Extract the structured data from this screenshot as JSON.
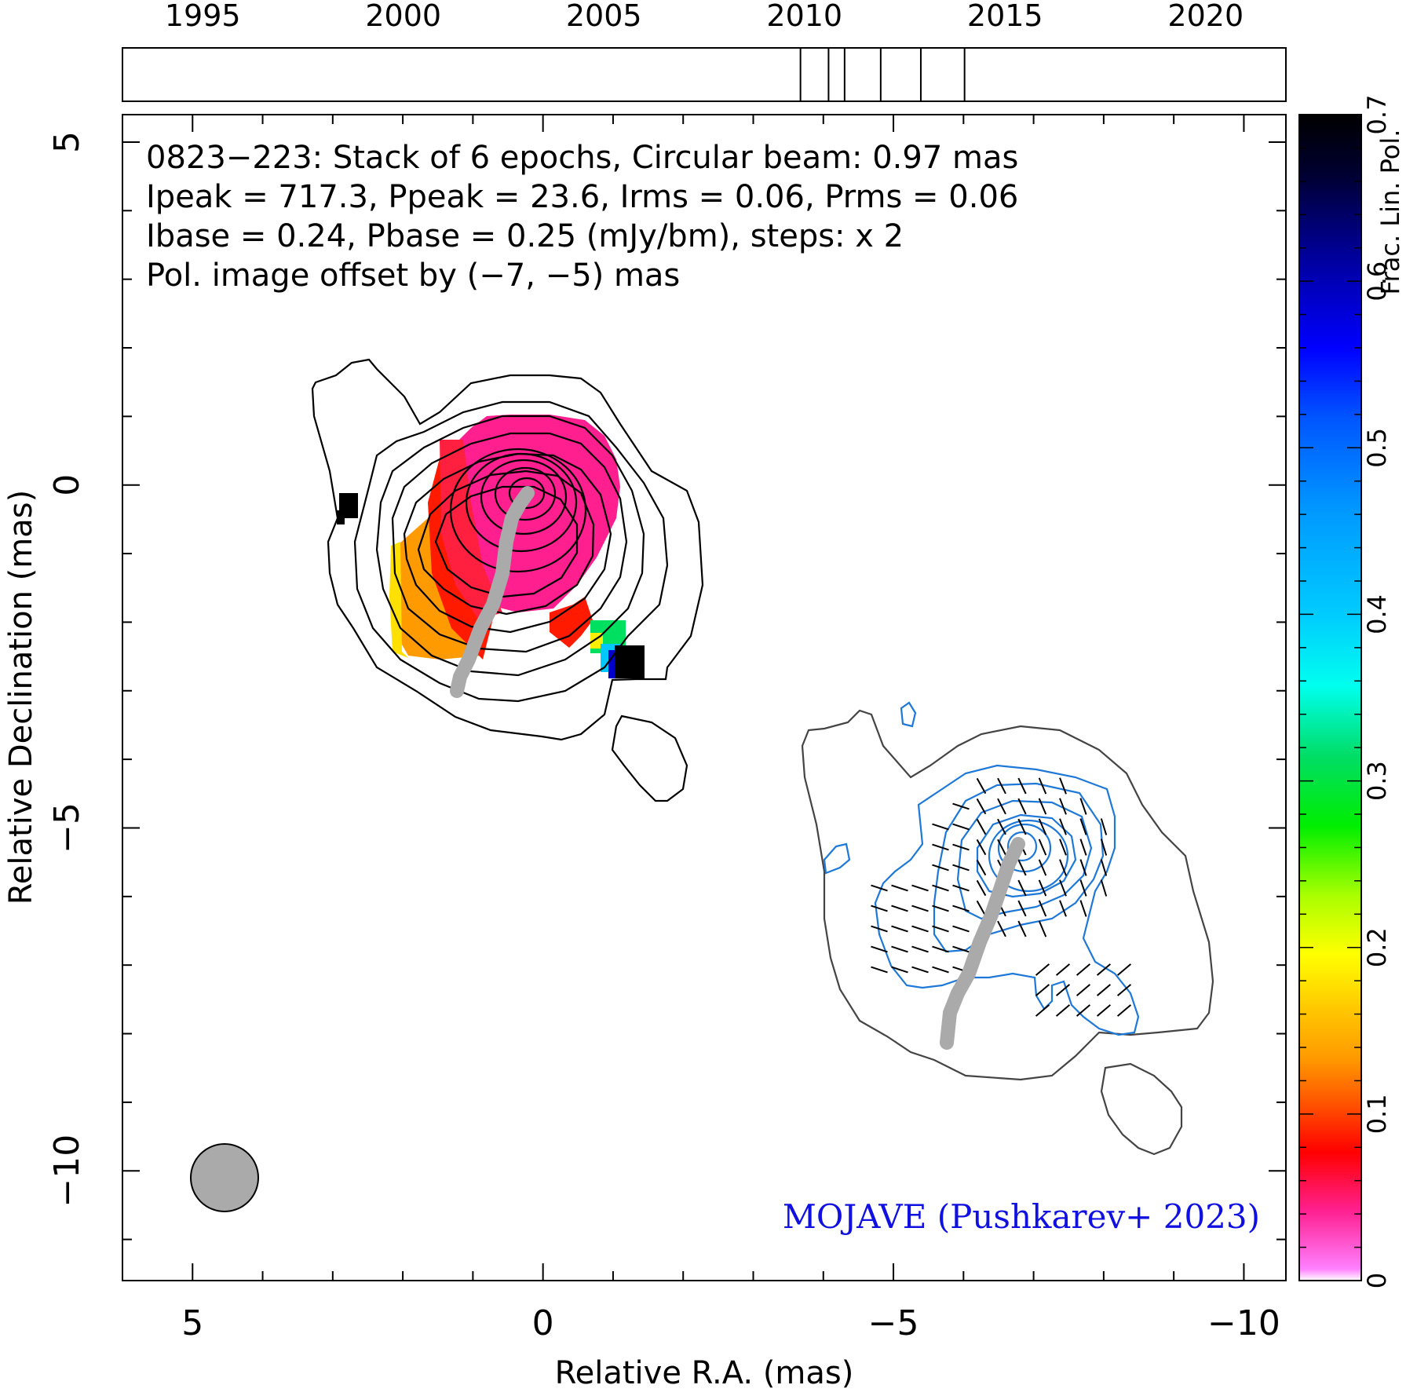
{
  "chart_data": {
    "type": "contour",
    "source": "0823−223",
    "header_lines": [
      "0823−223: Stack of 6 epochs, Circular beam: 0.97 mas",
      "Ipeak = 717.3, Ppeak = 23.6, Irms = 0.06, Prms = 0.06",
      "Ibase = 0.24, Pbase = 0.25 (mJy/bm), steps: x 2"
    ],
    "offset_note": "Pol. image offset by (−7, −5) mas",
    "offset_color": "#1e78d8",
    "credit": "MOJAVE (Pushkarev+ 2023)",
    "credit_color": "#1010e0",
    "xlabel": "Relative R.A. (mas)",
    "ylabel": "Relative Declination (mas)",
    "xlim": [
      6.0,
      -10.6
    ],
    "ylim": [
      -11.6,
      5.4
    ],
    "x_ticks": [
      5,
      0,
      -5,
      -10
    ],
    "x_tick_labels": [
      "5",
      "0",
      "−5",
      "−10"
    ],
    "y_ticks": [
      5,
      0,
      -5,
      -10
    ],
    "y_tick_labels": [
      "5",
      "0",
      "−5",
      "−10"
    ],
    "epoch_axis": {
      "range": [
        1993.0,
        2022.0
      ],
      "ticks": [
        1995,
        2000,
        2005,
        2010,
        2015,
        2020
      ],
      "tick_labels": [
        "1995",
        "2000",
        "2005",
        "2010",
        "2015",
        "2020"
      ],
      "epochs": [
        2009.9,
        2010.6,
        2011.0,
        2011.9,
        2012.9,
        2013.99
      ]
    },
    "colorbar": {
      "label": "Frac. Lin. Pol.",
      "range": [
        0,
        0.7
      ],
      "ticks": [
        0,
        0.1,
        0.2,
        0.3,
        0.4,
        0.5,
        0.6,
        0.7
      ],
      "tick_labels": [
        "0",
        "0.1",
        "0.2",
        "0.3",
        "0.4",
        "0.5",
        "0.6",
        "0.7"
      ]
    },
    "beam": {
      "center": [
        4.3,
        -9.6
      ],
      "diameter_mas": 0.97,
      "color": "#aaaaaa"
    },
    "ridgeline": [
      [
        0.0,
        0.0
      ],
      [
        -0.3,
        -0.1
      ],
      [
        0.1,
        -0.4
      ],
      [
        0.3,
        -0.9
      ],
      [
        0.45,
        -1.5
      ],
      [
        0.65,
        -2.1
      ],
      [
        0.9,
        -2.7
      ],
      [
        1.0,
        -2.85
      ]
    ],
    "pol_offset": [
      -7,
      -5
    ]
  }
}
